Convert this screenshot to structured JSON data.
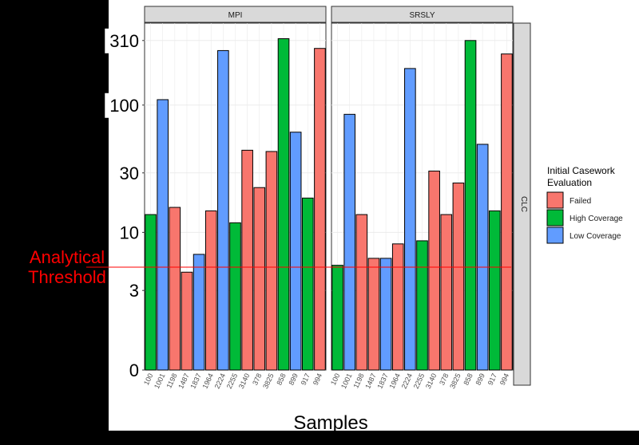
{
  "colors": {
    "background": "#000000",
    "plot_area": "#ffffff",
    "strip": "#d9d9d9",
    "grid": "#ebebeb",
    "threshold": "#ff0000",
    "failed": "#f8766d",
    "high_coverage": "#00ba38",
    "low_coverage": "#619cff"
  },
  "chart_data": {
    "type": "bar",
    "facets": [
      "MPI",
      "SRSLY"
    ],
    "row_facet": "CLC",
    "categories": [
      "100",
      "1001",
      "1198",
      "1487",
      "1837",
      "1964",
      "2224",
      "2255",
      "3140",
      "378",
      "3825",
      "858",
      "899",
      "917",
      "994"
    ],
    "evaluation": [
      "High Coverage",
      "Low Coverage",
      "Failed",
      "Failed",
      "Low Coverage",
      "Failed",
      "Low Coverage",
      "High Coverage",
      "Failed",
      "Failed",
      "Failed",
      "High Coverage",
      "Low Coverage",
      "High Coverage",
      "Failed"
    ],
    "series": [
      {
        "name": "MPI",
        "values": [
          14,
          110,
          16,
          4.5,
          6.5,
          15,
          260,
          12,
          45,
          23,
          44,
          320,
          62,
          19,
          270
        ]
      },
      {
        "name": "SRSLY",
        "values": [
          5.2,
          85,
          14,
          6,
          6,
          8,
          190,
          8.5,
          31,
          14,
          25,
          310,
          50,
          15,
          245
        ]
      }
    ],
    "xlabel": "Samples",
    "ylabel": "",
    "yticks": [
      {
        "label": "310",
        "value": 310
      },
      {
        "label": "100",
        "value": 100
      },
      {
        "label": "30",
        "value": 30
      },
      {
        "label": "10",
        "value": 10
      },
      {
        "label": "3",
        "value": 3
      },
      {
        "label": "0",
        "value": 0
      }
    ],
    "y_scale": "log1p",
    "ylim": [
      0,
      420
    ],
    "grid": true,
    "legend": {
      "title": "Initial Casework Evaluation",
      "position": "right",
      "entries": [
        {
          "label": "Failed",
          "key": "failed"
        },
        {
          "label": "High Coverage",
          "key": "high_coverage"
        },
        {
          "label": "Low Coverage",
          "key": "low_coverage"
        }
      ]
    },
    "annotation": {
      "text": "Analytical Threshold",
      "value": 5
    }
  }
}
